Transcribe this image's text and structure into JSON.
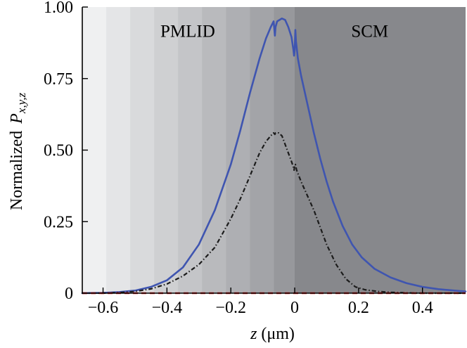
{
  "chart_data": {
    "type": "line",
    "xlabel_var": "z",
    "xlabel_unit": " (μm)",
    "ylabel_prefix": "Normalized",
    "ylabel_var": "P",
    "ylabel_sub": "x,y,z",
    "xlim": [
      -0.665,
      0.535
    ],
    "ylim": [
      0,
      1.0
    ],
    "xticks": [
      {
        "value": -0.6,
        "label": "−0.6"
      },
      {
        "value": -0.4,
        "label": "−0.4"
      },
      {
        "value": -0.2,
        "label": "−0.2"
      },
      {
        "value": 0,
        "label": "0"
      },
      {
        "value": 0.2,
        "label": "0.2"
      },
      {
        "value": 0.4,
        "label": "0.4"
      }
    ],
    "yticks": [
      {
        "value": 0,
        "label": "0"
      },
      {
        "value": 0.25,
        "label": "0.25"
      },
      {
        "value": 0.5,
        "label": "0.50"
      },
      {
        "value": 0.75,
        "label": "0.75"
      },
      {
        "value": 1.0,
        "label": "1.00"
      }
    ],
    "region_labels": [
      {
        "text": "PMLID",
        "x": -0.335,
        "y": 0.895
      },
      {
        "text": "SCM",
        "x": 0.235,
        "y": 0.895
      }
    ],
    "background_bands": {
      "colors": [
        "#eff0f1",
        "#e4e5e7",
        "#d9dadc",
        "#cfd0d2",
        "#c4c5c8",
        "#b9babd",
        "#aeafb3",
        "#a3a4a8",
        "#97989c"
      ],
      "edges": [
        -0.665,
        -0.59,
        -0.515,
        -0.44,
        -0.365,
        -0.29,
        -0.215,
        -0.14,
        -0.065,
        0.0
      ],
      "scm_color": "#87888c"
    },
    "series": [
      {
        "style": "solid",
        "color": "#3f55b0",
        "x": [
          -0.665,
          -0.6,
          -0.55,
          -0.5,
          -0.45,
          -0.4,
          -0.35,
          -0.3,
          -0.25,
          -0.2,
          -0.17,
          -0.14,
          -0.11,
          -0.09,
          -0.075,
          -0.066,
          -0.062,
          -0.06,
          -0.055,
          -0.04,
          -0.03,
          -0.02,
          -0.01,
          -0.004,
          -0.002,
          0.0,
          0.002,
          0.004,
          0.01,
          0.02,
          0.04,
          0.06,
          0.08,
          0.1,
          0.12,
          0.15,
          0.18,
          0.21,
          0.25,
          0.3,
          0.35,
          0.4,
          0.45,
          0.5,
          0.535
        ],
        "y": [
          0.0,
          0.001,
          0.004,
          0.009,
          0.022,
          0.045,
          0.09,
          0.17,
          0.29,
          0.45,
          0.57,
          0.7,
          0.82,
          0.89,
          0.93,
          0.95,
          0.9,
          0.93,
          0.95,
          0.96,
          0.955,
          0.93,
          0.895,
          0.85,
          0.83,
          0.85,
          0.92,
          0.88,
          0.82,
          0.76,
          0.66,
          0.56,
          0.47,
          0.39,
          0.32,
          0.235,
          0.17,
          0.125,
          0.085,
          0.055,
          0.035,
          0.022,
          0.014,
          0.009,
          0.006
        ]
      },
      {
        "style": "dashdot",
        "color": "#1c1c1c",
        "x": [
          -0.665,
          -0.6,
          -0.55,
          -0.5,
          -0.45,
          -0.4,
          -0.35,
          -0.3,
          -0.25,
          -0.2,
          -0.17,
          -0.14,
          -0.11,
          -0.09,
          -0.075,
          -0.066,
          -0.062,
          -0.06,
          -0.05,
          -0.04,
          -0.03,
          -0.02,
          -0.01,
          -0.004,
          -0.002,
          0.0,
          0.002,
          0.006,
          0.02,
          0.04,
          0.06,
          0.08,
          0.1,
          0.13,
          0.16,
          0.19,
          0.22,
          0.26,
          0.3,
          0.35,
          0.4,
          0.45,
          0.5,
          0.535
        ],
        "y": [
          0.0,
          0.0,
          0.002,
          0.006,
          0.015,
          0.032,
          0.06,
          0.1,
          0.16,
          0.26,
          0.33,
          0.41,
          0.49,
          0.53,
          0.55,
          0.56,
          0.555,
          0.56,
          0.56,
          0.55,
          0.52,
          0.49,
          0.46,
          0.44,
          0.43,
          0.445,
          0.45,
          0.43,
          0.39,
          0.34,
          0.29,
          0.23,
          0.17,
          0.1,
          0.05,
          0.022,
          0.012,
          0.006,
          0.003,
          0.001,
          0.0,
          0.0,
          0.0,
          0.0
        ]
      },
      {
        "style": "dashed",
        "color": "#e02020",
        "x": [
          -0.665,
          0.535
        ],
        "y": [
          0.0,
          0.0
        ]
      }
    ]
  }
}
